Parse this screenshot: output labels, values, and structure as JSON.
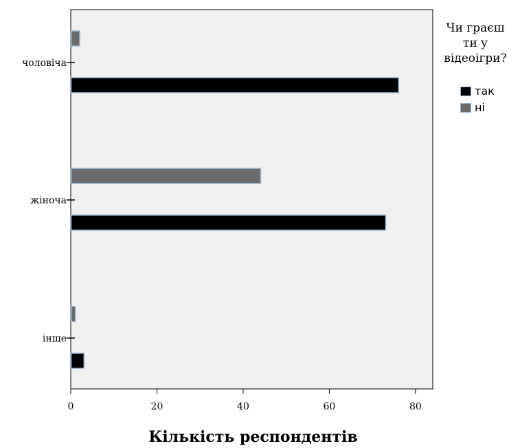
{
  "chart_data": {
    "type": "bar",
    "orientation": "horizontal",
    "categories": [
      "чоловіча",
      "жіноча",
      "інше"
    ],
    "series": [
      {
        "name": "ні",
        "values": [
          2,
          44,
          1
        ],
        "color": "#6b6b6b"
      },
      {
        "name": "так",
        "values": [
          76,
          73,
          3
        ],
        "color": "#000000"
      }
    ],
    "xlabel": "Кількість респондентів",
    "ylabel": "",
    "xlim": [
      0,
      84
    ],
    "xticks": [
      "0",
      "20",
      "40",
      "60",
      "80"
    ],
    "grid": false,
    "plot_background": "#f0f0f0",
    "bar_edge_color": "#9fb9d6",
    "legend": {
      "title_lines": [
        "Чи граєш",
        "ти у",
        "відеоігри?"
      ],
      "placement": "right",
      "entries": [
        {
          "label": "так",
          "color": "#000000"
        },
        {
          "label": "ні",
          "color": "#6b6b6b"
        }
      ]
    }
  }
}
